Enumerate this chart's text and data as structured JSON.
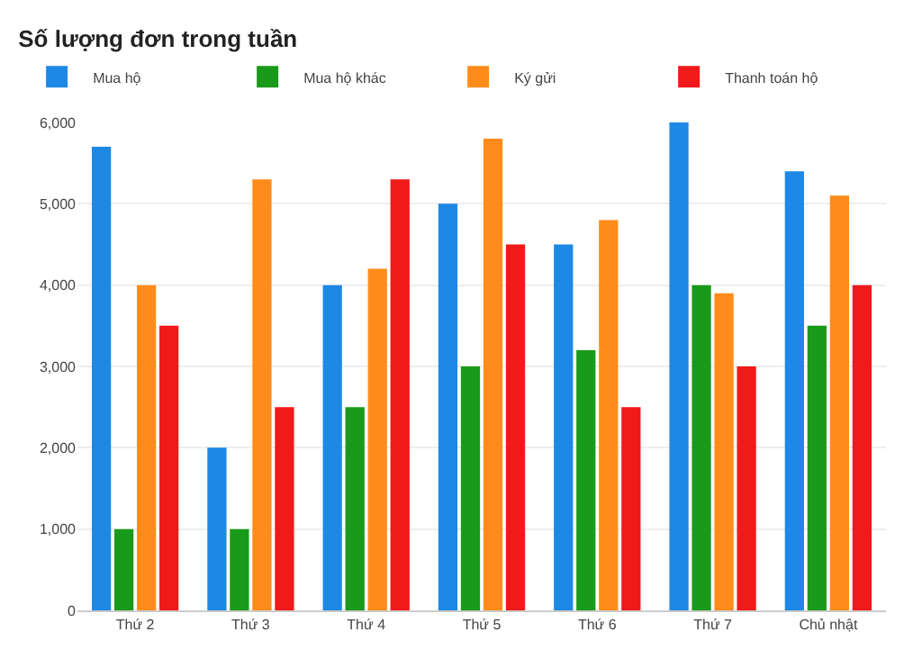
{
  "chart_data": {
    "type": "bar",
    "title": "Số lượng đơn trong tuần",
    "categories": [
      "Thứ 2",
      "Thứ 3",
      "Thứ 4",
      "Thứ 5",
      "Thứ 6",
      "Thứ 7",
      "Chủ nhật"
    ],
    "series": [
      {
        "name": "Mua hộ",
        "color": "#1e88e5",
        "values": [
          5700,
          2000,
          4000,
          5000,
          4500,
          6000,
          5400
        ]
      },
      {
        "name": "Mua hộ khác",
        "color": "#1a9a1a",
        "values": [
          1000,
          1000,
          2500,
          3000,
          3200,
          4000,
          3500
        ]
      },
      {
        "name": "Ký gửi",
        "color": "#ff8c1a",
        "values": [
          4000,
          5300,
          4200,
          5800,
          4800,
          3900,
          5100
        ]
      },
      {
        "name": "Thanh toán hộ",
        "color": "#f01a1a",
        "values": [
          3500,
          2500,
          5300,
          4500,
          2500,
          3000,
          4000
        ]
      }
    ],
    "ylim": [
      0,
      6000
    ],
    "yticks": [
      0,
      {
        "value": 1000,
        "label": "1,000"
      },
      {
        "value": 2000,
        "label": "2,000"
      },
      {
        "value": 3000,
        "label": "3,000"
      },
      {
        "value": 4000,
        "label": "4,000"
      },
      {
        "value": 5000,
        "label": "5,000"
      },
      {
        "value": 6000,
        "label": "6,000"
      }
    ],
    "grid": "y",
    "legend": "top"
  }
}
